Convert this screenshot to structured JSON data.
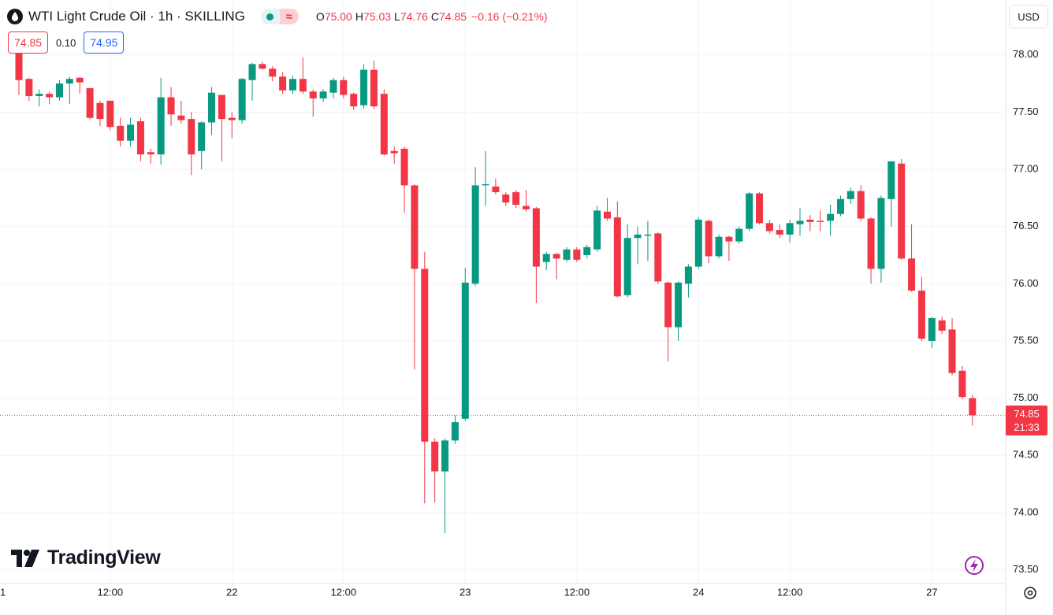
{
  "chart_data": {
    "type": "candlestick",
    "title": "WTI Light Crude Oil · 1h · SKILLING",
    "ohlc_header": [
      {
        "label": "O",
        "value": "75.00"
      },
      {
        "label": "H",
        "value": "75.03"
      },
      {
        "label": "L",
        "value": "74.76"
      },
      {
        "label": "C",
        "value": "74.85"
      }
    ],
    "change": "−0.16 (−0.21%)",
    "bid": "74.85",
    "spread": "0.10",
    "ask": "74.95",
    "currency": "USD",
    "brand": "TradingView",
    "up_color": "#089981",
    "down_color": "#f23645",
    "x_edge_label": "1",
    "categories": [
      null,
      null,
      null,
      null,
      null,
      null,
      null,
      null,
      null,
      "12:00",
      null,
      null,
      null,
      null,
      null,
      null,
      null,
      null,
      null,
      null,
      null,
      "22",
      null,
      null,
      null,
      null,
      null,
      null,
      null,
      null,
      null,
      null,
      "12:00",
      null,
      null,
      null,
      null,
      null,
      null,
      null,
      null,
      null,
      null,
      null,
      "23",
      null,
      null,
      null,
      null,
      null,
      null,
      null,
      null,
      null,
      null,
      "12:00",
      null,
      null,
      null,
      null,
      null,
      null,
      null,
      null,
      null,
      null,
      null,
      "24",
      null,
      null,
      null,
      null,
      null,
      null,
      null,
      null,
      "12:00",
      null,
      null,
      null,
      null,
      null,
      null,
      null,
      null,
      null,
      null,
      null,
      null,
      null,
      "27",
      null,
      null,
      null,
      null
    ],
    "open": [
      78.05,
      77.79,
      77.64,
      77.66,
      77.63,
      77.75,
      77.8,
      77.71,
      77.58,
      77.6,
      77.38,
      77.25,
      77.42,
      77.15,
      77.13,
      77.63,
      77.47,
      77.44,
      77.16,
      77.41,
      77.65,
      77.45,
      77.43,
      77.78,
      77.92,
      77.88,
      77.81,
      77.69,
      77.79,
      77.68,
      77.62,
      77.67,
      77.78,
      77.66,
      77.56,
      77.87,
      77.66,
      77.16,
      77.18,
      76.86,
      76.13,
      74.62,
      74.36,
      74.63,
      74.82,
      76.0,
      76.86,
      76.85,
      76.78,
      76.8,
      76.68,
      76.66,
      76.19,
      76.26,
      76.21,
      76.3,
      76.25,
      76.3,
      76.63,
      76.58,
      75.9,
      76.4,
      76.42,
      76.44,
      76.01,
      75.62,
      76.0,
      76.15,
      76.55,
      76.24,
      76.41,
      76.37,
      76.48,
      76.79,
      76.53,
      76.47,
      76.43,
      76.52,
      76.56,
      76.55,
      76.55,
      76.61,
      76.74,
      76.81,
      76.57,
      76.13,
      76.74,
      77.05,
      76.22,
      75.94,
      75.5,
      75.68,
      75.6,
      75.24,
      75.0
    ],
    "high": [
      78.15,
      77.8,
      77.7,
      77.68,
      77.78,
      77.81,
      77.81,
      77.71,
      77.6,
      77.6,
      77.45,
      77.45,
      77.45,
      77.18,
      77.8,
      77.72,
      77.6,
      77.5,
      77.42,
      77.72,
      77.65,
      77.5,
      77.8,
      77.93,
      77.94,
      77.9,
      77.85,
      77.82,
      77.98,
      77.7,
      77.7,
      77.8,
      77.81,
      77.67,
      77.92,
      77.95,
      77.7,
      77.2,
      77.2,
      76.87,
      76.28,
      74.65,
      74.65,
      74.85,
      76.14,
      77.02,
      77.16,
      76.92,
      76.8,
      76.82,
      76.82,
      76.67,
      76.28,
      76.27,
      76.32,
      76.32,
      76.34,
      76.68,
      76.75,
      76.72,
      76.52,
      76.5,
      76.55,
      76.45,
      76.02,
      76.02,
      76.17,
      76.58,
      76.56,
      76.43,
      76.42,
      76.5,
      76.8,
      76.8,
      76.56,
      76.52,
      76.56,
      76.66,
      76.6,
      76.64,
      76.69,
      76.77,
      76.84,
      76.86,
      76.58,
      76.77,
      77.07,
      77.09,
      76.52,
      76.06,
      75.71,
      75.71,
      75.7,
      75.28,
      75.03
    ],
    "low": [
      77.65,
      77.6,
      77.55,
      77.57,
      77.6,
      77.57,
      77.66,
      77.44,
      77.38,
      77.34,
      77.2,
      77.2,
      77.07,
      77.05,
      77.04,
      77.38,
      77.4,
      76.95,
      77.0,
      77.3,
      77.07,
      77.27,
      77.4,
      77.6,
      77.87,
      77.77,
      77.66,
      77.66,
      77.66,
      77.46,
      77.59,
      77.62,
      77.62,
      77.52,
      77.53,
      77.53,
      77.12,
      77.05,
      76.62,
      75.25,
      74.08,
      74.09,
      73.82,
      74.6,
      74.8,
      75.98,
      76.68,
      76.78,
      76.68,
      76.66,
      76.63,
      75.83,
      76.12,
      76.04,
      76.19,
      76.19,
      76.22,
      76.28,
      76.55,
      75.88,
      75.88,
      76.17,
      76.2,
      76.0,
      75.32,
      75.5,
      75.88,
      76.13,
      76.18,
      76.22,
      76.2,
      76.35,
      76.46,
      76.52,
      76.44,
      76.4,
      76.36,
      76.42,
      76.46,
      76.46,
      76.42,
      76.59,
      76.7,
      76.55,
      76.0,
      76.01,
      76.5,
      76.21,
      75.93,
      75.5,
      75.44,
      75.56,
      75.2,
      74.99,
      74.76
    ],
    "close": [
      77.78,
      77.64,
      77.66,
      77.63,
      77.75,
      77.79,
      77.76,
      77.45,
      77.44,
      77.37,
      77.25,
      77.39,
      77.13,
      77.13,
      77.63,
      77.48,
      77.43,
      77.13,
      77.41,
      77.67,
      77.44,
      77.43,
      77.79,
      77.92,
      77.88,
      77.81,
      77.69,
      77.79,
      77.68,
      77.62,
      77.68,
      77.78,
      77.65,
      77.55,
      77.87,
      77.55,
      77.13,
      77.14,
      76.86,
      76.13,
      74.62,
      74.36,
      74.63,
      74.79,
      76.01,
      76.86,
      76.87,
      76.8,
      76.71,
      76.69,
      76.65,
      76.15,
      76.26,
      76.22,
      76.3,
      76.21,
      76.32,
      76.64,
      76.57,
      75.89,
      76.4,
      76.43,
      76.43,
      76.02,
      75.62,
      76.01,
      76.15,
      76.56,
      76.24,
      76.41,
      76.37,
      76.48,
      76.79,
      76.53,
      76.46,
      76.43,
      76.53,
      76.55,
      76.54,
      76.54,
      76.61,
      76.74,
      76.81,
      76.57,
      76.13,
      76.75,
      77.07,
      76.22,
      75.94,
      75.52,
      75.7,
      75.59,
      75.22,
      75.01,
      74.85
    ],
    "last_price": {
      "value": 74.85,
      "label": "74.85",
      "countdown": "21:33"
    },
    "ylim": [
      73.38,
      78.48
    ],
    "yticks": [
      {
        "value": 73.5,
        "label": "73.50"
      },
      {
        "value": 74,
        "label": "74.00"
      },
      {
        "value": 74.5,
        "label": "74.50"
      },
      {
        "value": 75,
        "label": "75.00"
      },
      {
        "value": 75.5,
        "label": "75.50"
      },
      {
        "value": 76,
        "label": "76.00"
      },
      {
        "value": 76.5,
        "label": "76.50"
      },
      {
        "value": 77,
        "label": "77.00"
      },
      {
        "value": 77.5,
        "label": "77.50"
      },
      {
        "value": 78,
        "label": "78.00"
      }
    ],
    "grid": true
  }
}
